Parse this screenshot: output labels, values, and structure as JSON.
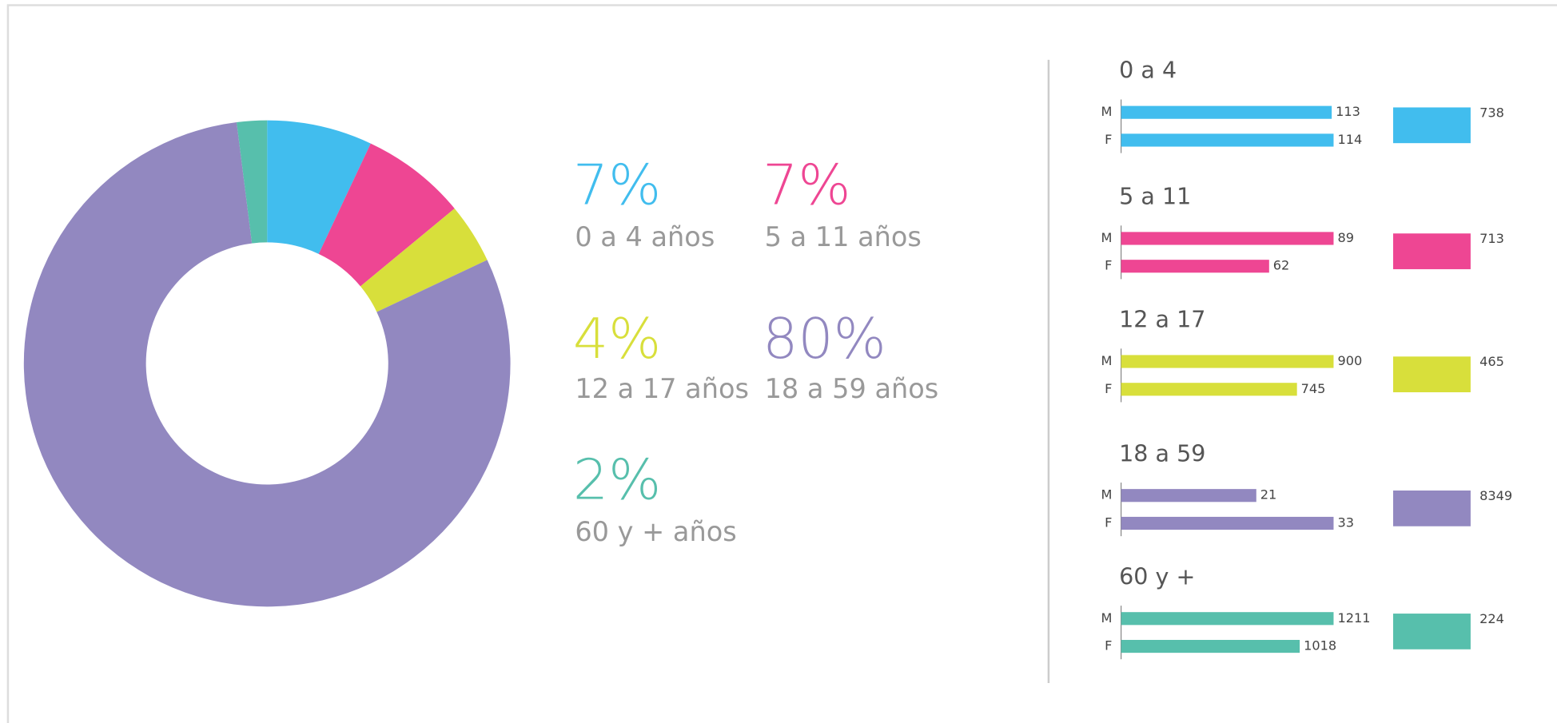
{
  "chart_data": [
    {
      "type": "donut",
      "categories": [
        "0 a 4 años",
        "5 a 11 años",
        "12 a 17 años",
        "18 a 59 años",
        "60 y + años"
      ],
      "values": [
        7,
        7,
        4,
        80,
        2
      ],
      "value_labels": [
        "7%",
        "7%",
        "4%",
        "80%",
        "2%"
      ],
      "colors": [
        "#41bdee",
        "#ee4693",
        "#d8df3b",
        "#9288c0",
        "#57bfac"
      ]
    },
    {
      "type": "grouped-hbar",
      "groups": [
        {
          "title": "0 a 4",
          "color": "#41bdee",
          "categories": [
            "M",
            "F"
          ],
          "values": [
            113,
            114
          ],
          "total": 738
        },
        {
          "title": "5 a 11",
          "color": "#ee4693",
          "categories": [
            "M",
            "F"
          ],
          "values": [
            89,
            62
          ],
          "total": 713
        },
        {
          "title": "12 a 17",
          "color": "#d8df3b",
          "categories": [
            "M",
            "F"
          ],
          "values": [
            900,
            745
          ],
          "total": 465
        },
        {
          "title": "18 a 59",
          "color": "#9288c0",
          "categories": [
            "M",
            "F"
          ],
          "values": [
            21,
            33
          ],
          "total": 8349
        },
        {
          "title": "60 y +",
          "color": "#57bfac",
          "categories": [
            "M",
            "F"
          ],
          "values": [
            1211,
            1018
          ],
          "total": 224
        }
      ]
    }
  ]
}
